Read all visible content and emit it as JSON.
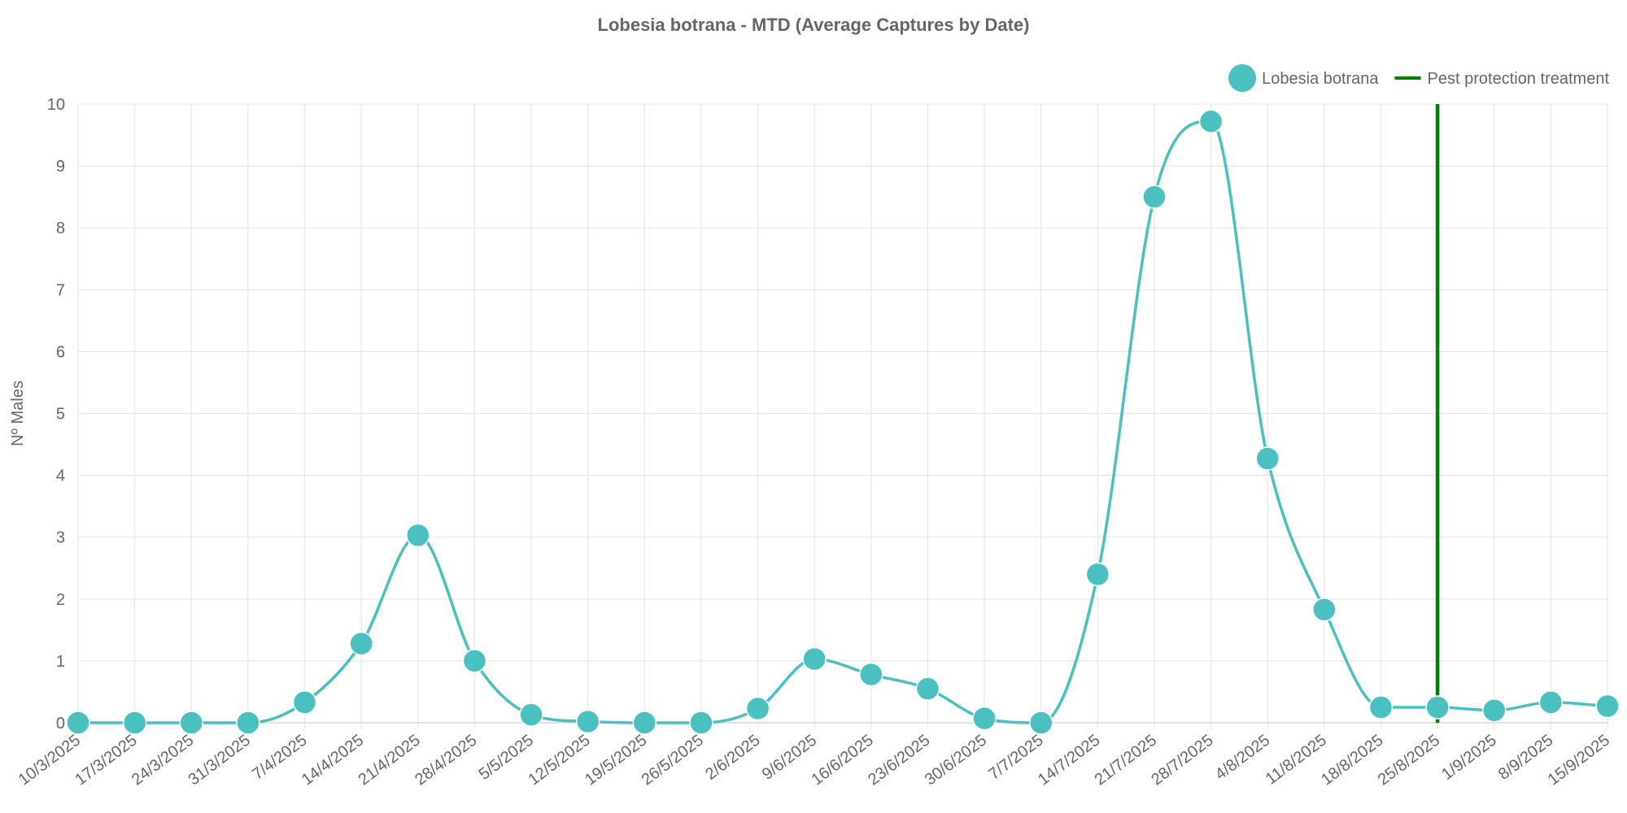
{
  "chart_data": {
    "type": "line",
    "title": "Lobesia botrana - MTD (Average Captures by Date)",
    "xlabel": "",
    "ylabel": "Nº Males",
    "ylim": [
      0,
      10
    ],
    "yticks": [
      "0",
      "1",
      "2",
      "3",
      "4",
      "5",
      "6",
      "7",
      "8",
      "9",
      "10"
    ],
    "grid": true,
    "legend_position": "top-right",
    "categories": [
      "10/3/2025",
      "17/3/2025",
      "24/3/2025",
      "31/3/2025",
      "7/4/2025",
      "14/4/2025",
      "21/4/2025",
      "28/4/2025",
      "5/5/2025",
      "12/5/2025",
      "19/5/2025",
      "26/5/2025",
      "2/6/2025",
      "9/6/2025",
      "16/6/2025",
      "23/6/2025",
      "30/6/2025",
      "7/7/2025",
      "14/7/2025",
      "21/7/2025",
      "28/7/2025",
      "4/8/2025",
      "11/8/2025",
      "18/8/2025",
      "25/8/2025",
      "1/9/2025",
      "8/9/2025",
      "15/9/2025"
    ],
    "series": [
      {
        "name": "Lobesia botrana",
        "color": "#4bc0c0",
        "values": [
          0,
          0,
          0,
          0,
          0.33,
          1.28,
          3.03,
          1.0,
          0.13,
          0.02,
          0,
          0,
          0.23,
          1.03,
          0.78,
          0.55,
          0.07,
          0,
          2.4,
          8.5,
          9.72,
          4.27,
          1.83,
          0.25,
          0.25,
          0.2,
          0.33,
          0.27
        ]
      }
    ],
    "treatments": [
      {
        "name": "Pest protection treatment",
        "color": "#008000",
        "date": "25/8/2025"
      }
    ]
  }
}
